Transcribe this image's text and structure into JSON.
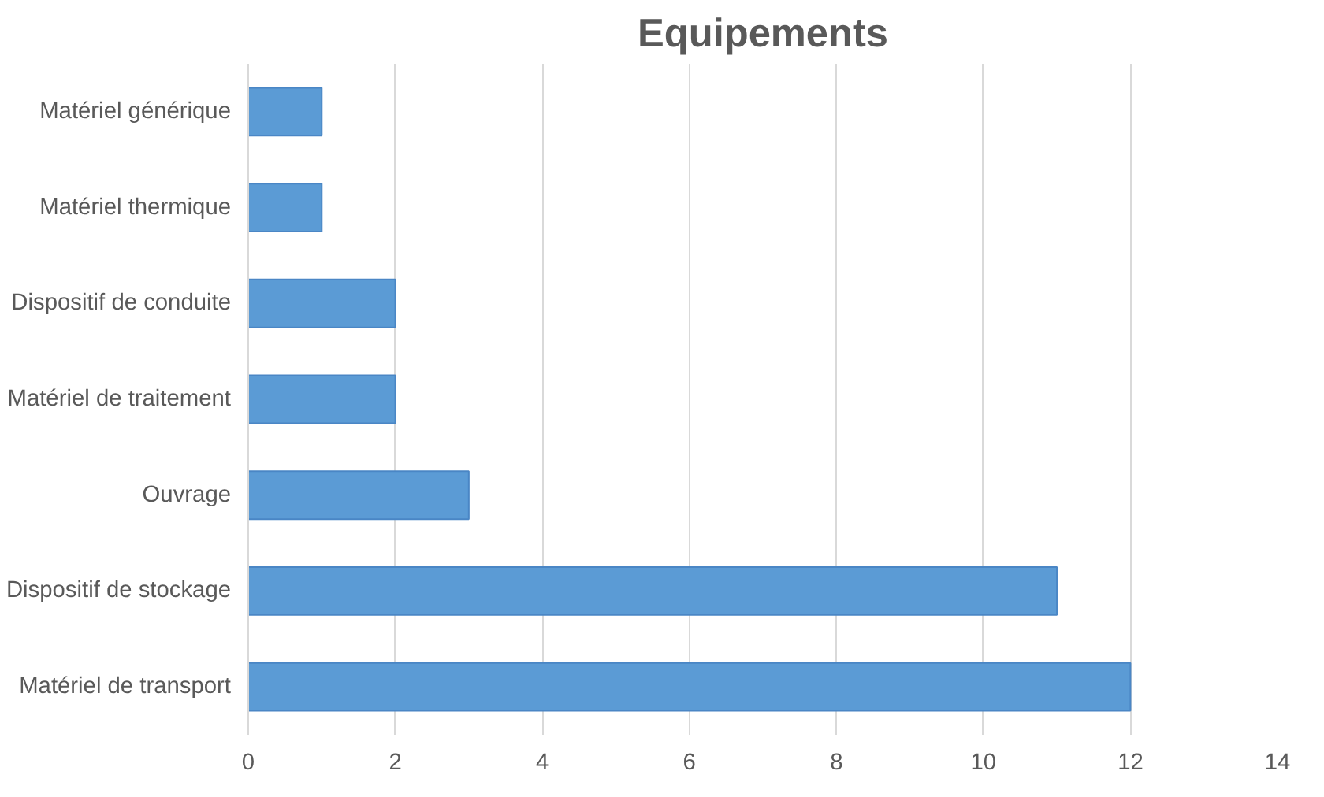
{
  "chart_data": {
    "type": "bar",
    "orientation": "horizontal",
    "title": "Equipements",
    "categories": [
      "Matériel générique",
      "Matériel thermique",
      "Dispositif de conduite",
      "Matériel de traitement",
      "Ouvrage",
      "Dispositif de stockage",
      "Matériel de transport"
    ],
    "values": [
      1,
      1,
      2,
      2,
      3,
      11,
      12
    ],
    "color": "#5b9bd5",
    "xlim": [
      0,
      14
    ],
    "xticks": [
      0,
      2,
      4,
      6,
      8,
      10,
      12,
      14
    ],
    "grid": "x"
  }
}
